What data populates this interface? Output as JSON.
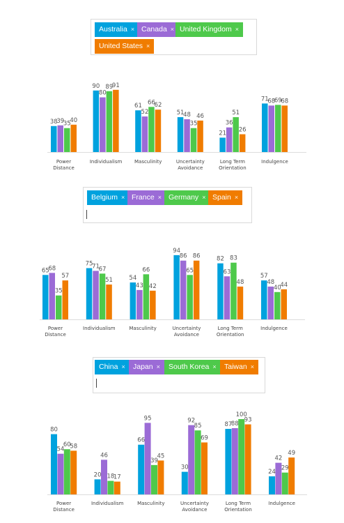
{
  "colors": [
    "#00a2de",
    "#9b6bd6",
    "#4ec94b",
    "#f07c00"
  ],
  "dimensions": [
    "Power Distance",
    "Individualism",
    "Masculinity",
    "Uncertainty Avoidance",
    "Long Term Orientation",
    "Indulgence"
  ],
  "panels": [
    {
      "selected": [
        "Australia",
        "Canada",
        "United Kingdom",
        "United States"
      ],
      "chart_data": {
        "type": "bar",
        "categories": [
          "Power Distance",
          "Individualism",
          "Masculinity",
          "Uncertainty Avoidance",
          "Long Term Orientation",
          "Indulgence"
        ],
        "ylim": [
          0,
          100
        ],
        "series": [
          {
            "name": "Australia",
            "values": [
              38,
              90,
              61,
              51,
              21,
              71
            ]
          },
          {
            "name": "Canada",
            "values": [
              39,
              80,
              52,
              48,
              36,
              68
            ]
          },
          {
            "name": "United Kingdom",
            "values": [
              35,
              89,
              66,
              35,
              51,
              69
            ]
          },
          {
            "name": "United States",
            "values": [
              40,
              91,
              62,
              46,
              26,
              68
            ]
          }
        ]
      }
    },
    {
      "selected": [
        "Belgium",
        "France",
        "Germany",
        "Spain"
      ],
      "chart_data": {
        "type": "bar",
        "categories": [
          "Power Distance",
          "Individualism",
          "Masculinity",
          "Uncertainty Avoidance",
          "Long Term Orientation",
          "Indulgence"
        ],
        "ylim": [
          0,
          100
        ],
        "series": [
          {
            "name": "Belgium",
            "values": [
              65,
              75,
              54,
              94,
              82,
              57
            ]
          },
          {
            "name": "France",
            "values": [
              68,
              71,
              43,
              86,
              63,
              48
            ]
          },
          {
            "name": "Germany",
            "values": [
              35,
              67,
              66,
              65,
              83,
              40
            ]
          },
          {
            "name": "Spain",
            "values": [
              57,
              51,
              42,
              86,
              48,
              44
            ]
          }
        ]
      }
    },
    {
      "selected": [
        "China",
        "Japan",
        "South Korea",
        "Taiwan"
      ],
      "chart_data": {
        "type": "bar",
        "categories": [
          "Power Distance",
          "Individualism",
          "Masculinity",
          "Uncertainty Avoidance",
          "Long Term Orientation",
          "Indulgence"
        ],
        "ylim": [
          0,
          100
        ],
        "series": [
          {
            "name": "China",
            "values": [
              80,
              20,
              66,
              30,
              87,
              24
            ]
          },
          {
            "name": "Japan",
            "values": [
              54,
              46,
              95,
              92,
              88,
              42
            ]
          },
          {
            "name": "South Korea",
            "values": [
              60,
              18,
              39,
              85,
              100,
              29
            ]
          },
          {
            "name": "Taiwan",
            "values": [
              58,
              17,
              45,
              69,
              93,
              49
            ]
          }
        ]
      }
    }
  ]
}
